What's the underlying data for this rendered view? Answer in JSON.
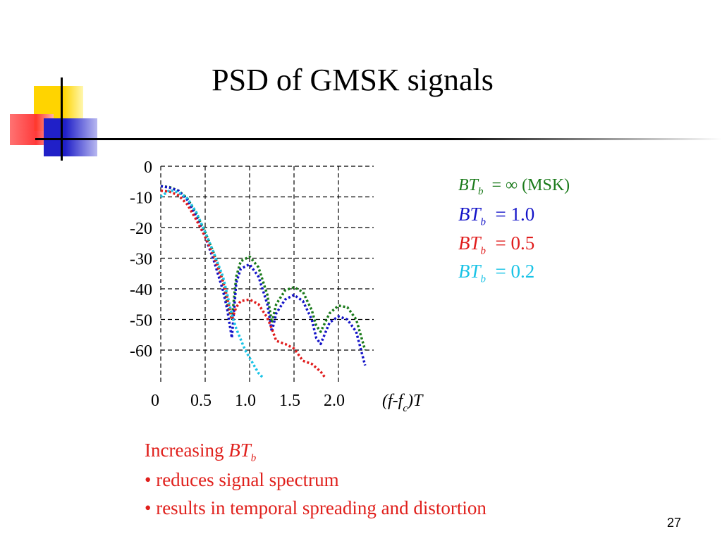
{
  "title": "PSD of GMSK signals",
  "page_number": "27",
  "legend": [
    {
      "prefix": "BT",
      "sub": "b",
      "value": "= ∞ (MSK)",
      "color": "#1a7a1a"
    },
    {
      "prefix": "BT",
      "sub": "b",
      "value": "= 1.0",
      "color": "#1414c8"
    },
    {
      "prefix": "BT",
      "sub": "b",
      "value": "= 0.5",
      "color": "#e01c1c"
    },
    {
      "prefix": "BT",
      "sub": "b",
      "value": "= 0.2",
      "color": "#19c3e6"
    }
  ],
  "note": {
    "line1_text": "Increasing ",
    "line1_bt": "BT",
    "line1_sub": "b",
    "line2": "• reduces signal spectrum",
    "line3": "• results in temporal spreading and distortion"
  },
  "chart_data": {
    "type": "line",
    "xlabel": "(f-fc)T",
    "ylabel": "",
    "x_ticks": [
      "0",
      "0.5",
      "1.0",
      "1.5",
      "2.0"
    ],
    "y_ticks": [
      "0",
      "-10",
      "-20",
      "-30",
      "-40",
      "-50",
      "-60"
    ],
    "xlim": [
      0,
      2.35
    ],
    "ylim": [
      -70,
      0
    ],
    "grid": true,
    "series": [
      {
        "name": "BTb = ∞ (MSK)",
        "color": "#1a7a1a",
        "x": [
          0,
          0.1,
          0.2,
          0.3,
          0.4,
          0.5,
          0.6,
          0.7,
          0.75,
          0.8,
          0.85,
          0.9,
          1.0,
          1.1,
          1.2,
          1.25,
          1.3,
          1.4,
          1.5,
          1.6,
          1.7,
          1.75,
          1.8,
          1.9,
          2.0,
          2.1,
          2.2,
          2.3
        ],
        "y": [
          -6.5,
          -6.8,
          -8.0,
          -10.5,
          -15.5,
          -21.5,
          -28.5,
          -37.5,
          -45.0,
          -50.0,
          -36.0,
          -31.0,
          -29.5,
          -33.0,
          -42.0,
          -51.0,
          -45.0,
          -40.5,
          -39.5,
          -41.0,
          -47.0,
          -52.0,
          -54.0,
          -48.0,
          -45.5,
          -46.0,
          -50.0,
          -60.0
        ]
      },
      {
        "name": "BTb = 1.0",
        "color": "#1414c8",
        "x": [
          0,
          0.1,
          0.2,
          0.3,
          0.4,
          0.5,
          0.6,
          0.7,
          0.75,
          0.8,
          0.85,
          0.9,
          1.0,
          1.1,
          1.2,
          1.25,
          1.3,
          1.4,
          1.5,
          1.6,
          1.7,
          1.75,
          1.8,
          1.9,
          2.0,
          2.1,
          2.2,
          2.3
        ],
        "y": [
          -6.5,
          -7.0,
          -8.0,
          -11.0,
          -16.5,
          -23.0,
          -31.0,
          -40.5,
          -47.0,
          -56.0,
          -38.0,
          -33.5,
          -32.0,
          -36.0,
          -45.0,
          -54.0,
          -48.0,
          -43.5,
          -42.0,
          -44.0,
          -50.0,
          -56.0,
          -58.0,
          -51.0,
          -49.0,
          -50.0,
          -54.0,
          -65.0
        ]
      },
      {
        "name": "BTb = 0.5",
        "color": "#e01c1c",
        "x": [
          0,
          0.1,
          0.2,
          0.3,
          0.4,
          0.5,
          0.6,
          0.7,
          0.75,
          0.8,
          0.85,
          0.9,
          1.0,
          1.1,
          1.2,
          1.25,
          1.3,
          1.4,
          1.5,
          1.6,
          1.7,
          1.8,
          1.85
        ],
        "y": [
          -8.0,
          -8.3,
          -9.5,
          -12.5,
          -17.5,
          -23.0,
          -29.5,
          -37.5,
          -43.0,
          -50.0,
          -46.0,
          -44.0,
          -43.5,
          -45.0,
          -49.5,
          -53.0,
          -57.0,
          -58.0,
          -59.5,
          -63.5,
          -64.5,
          -67.0,
          -69.0
        ]
      },
      {
        "name": "BTb = 0.2",
        "color": "#19c3e6",
        "x": [
          0,
          0.1,
          0.2,
          0.3,
          0.4,
          0.5,
          0.6,
          0.7,
          0.75,
          0.8,
          0.85,
          0.9,
          0.95,
          1.0,
          1.05,
          1.1,
          1.15
        ],
        "y": [
          -10.0,
          -7.8,
          -8.5,
          -10.5,
          -15.0,
          -21.5,
          -28.5,
          -36.0,
          -42.0,
          -48.5,
          -53.0,
          -56.5,
          -60.0,
          -62.5,
          -65.0,
          -67.5,
          -69.0
        ]
      }
    ]
  }
}
